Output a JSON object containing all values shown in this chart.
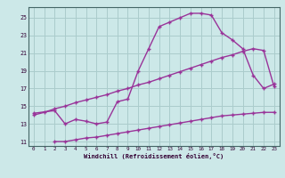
{
  "bg_color": "#cce8e8",
  "grid_color": "#aacccc",
  "line_color": "#993399",
  "xlabel": "Windchill (Refroidissement éolien,°C)",
  "xlim": [
    -0.5,
    23.5
  ],
  "ylim": [
    10.5,
    26.2
  ],
  "xticks": [
    0,
    1,
    2,
    3,
    4,
    5,
    6,
    7,
    8,
    9,
    10,
    11,
    12,
    13,
    14,
    15,
    16,
    17,
    18,
    19,
    20,
    21,
    22,
    23
  ],
  "yticks": [
    11,
    13,
    15,
    17,
    19,
    21,
    23,
    25
  ],
  "curve1_x": [
    0,
    2,
    3,
    4,
    5,
    6,
    7,
    8,
    9,
    10,
    11,
    12,
    13,
    14,
    15,
    16,
    17,
    18,
    19,
    20,
    21,
    22,
    23
  ],
  "curve1_y": [
    14.2,
    14.5,
    13.0,
    13.5,
    13.3,
    13.0,
    13.2,
    15.5,
    15.8,
    19.0,
    21.5,
    24.0,
    24.5,
    25.0,
    25.5,
    25.5,
    25.3,
    23.3,
    22.5,
    21.5,
    18.5,
    17.0,
    17.5
  ],
  "curve2_x": [
    0,
    1,
    2,
    3,
    4,
    5,
    6,
    7,
    8,
    9,
    10,
    11,
    12,
    13,
    14,
    15,
    16,
    17,
    18,
    19,
    20,
    21,
    22,
    23
  ],
  "curve2_y": [
    14.0,
    14.3,
    14.7,
    15.0,
    15.4,
    15.7,
    16.0,
    16.3,
    16.7,
    17.0,
    17.4,
    17.7,
    18.1,
    18.5,
    18.9,
    19.3,
    19.7,
    20.1,
    20.5,
    20.8,
    21.2,
    21.5,
    21.3,
    17.2
  ],
  "curve3_x": [
    2,
    3,
    4,
    5,
    6,
    7,
    8,
    9,
    10,
    11,
    12,
    13,
    14,
    15,
    16,
    17,
    18,
    19,
    20,
    21,
    22,
    23
  ],
  "curve3_y": [
    11.0,
    11.0,
    11.2,
    11.4,
    11.5,
    11.7,
    11.9,
    12.1,
    12.3,
    12.5,
    12.7,
    12.9,
    13.1,
    13.3,
    13.5,
    13.7,
    13.9,
    14.0,
    14.1,
    14.2,
    14.3,
    14.3
  ]
}
